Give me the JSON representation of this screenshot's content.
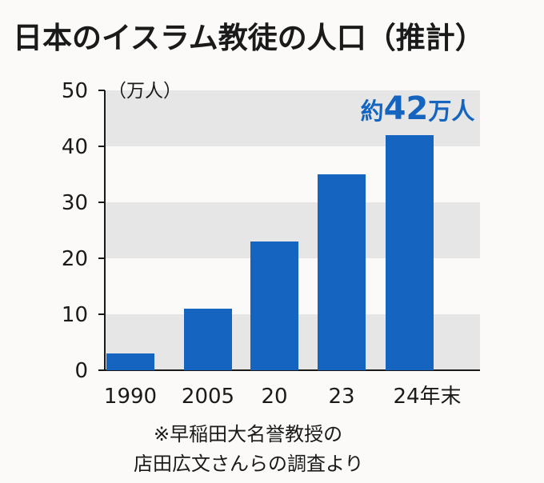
{
  "chart_data": {
    "type": "bar",
    "title": "日本のイスラム教徒の人口（推計）",
    "ylabel": "（万人）",
    "xlabel": "",
    "categories": [
      "1990",
      "2005",
      "20",
      "23",
      "24年末"
    ],
    "values": [
      3,
      11,
      23,
      35,
      42
    ],
    "ylim": [
      0,
      50
    ],
    "yticks": [
      0,
      10,
      20,
      30,
      40,
      50
    ],
    "bar_color": "#1565c0",
    "band_color": "#e6e6e6",
    "annotation": {
      "prefix": "約",
      "number": "42",
      "suffix": "万人",
      "target_category": "24年末",
      "color": "#1565c0"
    },
    "source": [
      "※早稲田大名誉教授の",
      "店田広文さんらの調査より"
    ]
  }
}
